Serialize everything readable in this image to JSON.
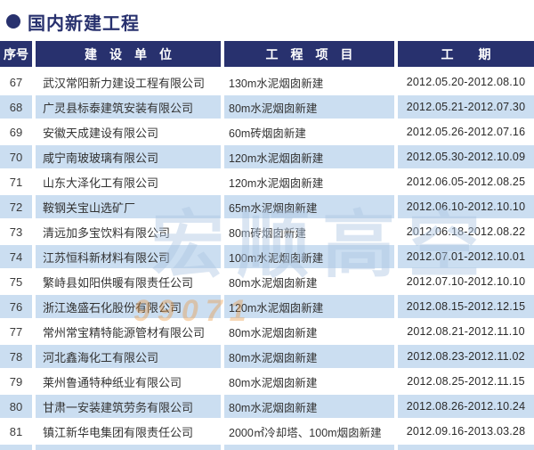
{
  "title": {
    "bullet": "●",
    "text": "国内新建工程"
  },
  "table": {
    "headers": {
      "no": "序号",
      "company": "建　设　单　位",
      "project": "工　程　项　目",
      "period": "工　　期"
    },
    "rows": [
      {
        "no": "67",
        "company": "武汉常阳新力建设工程有限公司",
        "project": "130m水泥烟囱新建",
        "period": "2012.05.20-2012.08.10"
      },
      {
        "no": "68",
        "company": "广灵县标泰建筑安装有限公司",
        "project": "80m水泥烟囱新建",
        "period": "2012.05.21-2012.07.30"
      },
      {
        "no": "69",
        "company": "安徽天成建设有限公司",
        "project": "60m砖烟囱新建",
        "period": "2012.05.26-2012.07.16"
      },
      {
        "no": "70",
        "company": "咸宁南玻玻璃有限公司",
        "project": "120m水泥烟囱新建",
        "period": "2012.05.30-2012.10.09"
      },
      {
        "no": "71",
        "company": "山东大泽化工有限公司",
        "project": "120m水泥烟囱新建",
        "period": "2012.06.05-2012.08.25"
      },
      {
        "no": "72",
        "company": "鞍钢关宝山选矿厂",
        "project": "65m水泥烟囱新建",
        "period": "2012.06.10-2012.10.10"
      },
      {
        "no": "73",
        "company": "清远加多宝饮料有限公司",
        "project": "80m砖烟囱新建",
        "period": "2012.06.18-2012.08.22"
      },
      {
        "no": "74",
        "company": "江苏恒科新材料有限公司",
        "project": "100m水泥烟囱新建",
        "period": "2012.07.01-2012.10.01"
      },
      {
        "no": "75",
        "company": "繁峙县如阳供暖有限责任公司",
        "project": "80m水泥烟囱新建",
        "period": "2012.07.10-2012.10.10"
      },
      {
        "no": "76",
        "company": "浙江逸盛石化股份有限公司",
        "project": "120m水泥烟囱新建",
        "period": "2012.08.15-2012.12.15"
      },
      {
        "no": "77",
        "company": "常州常宝精特能源管材有限公司",
        "project": "80m水泥烟囱新建",
        "period": "2012.08.21-2012.11.10"
      },
      {
        "no": "78",
        "company": "河北鑫海化工有限公司",
        "project": "80m水泥烟囱新建",
        "period": "2012.08.23-2012.11.02"
      },
      {
        "no": "79",
        "company": "莱州鲁通特种纸业有限公司",
        "project": "80m水泥烟囱新建",
        "period": "2012.08.25-2012.11.15"
      },
      {
        "no": "80",
        "company": "甘肃一安装建筑劳务有限公司",
        "project": "80m水泥烟囱新建",
        "period": "2012.08.26-2012.10.24"
      },
      {
        "no": "81",
        "company": "镇江新华电集团有限责任公司",
        "project": "2000㎡冷却塔、100m烟囱新建",
        "period": "2012.09.16-2013.03.28"
      }
    ]
  },
  "watermark": {
    "logo_text": "宏顺高空",
    "phone_digits": "99071"
  },
  "colors": {
    "navy": "#28316e",
    "row_alt": "#cbdef1",
    "body_text": "#333333"
  }
}
